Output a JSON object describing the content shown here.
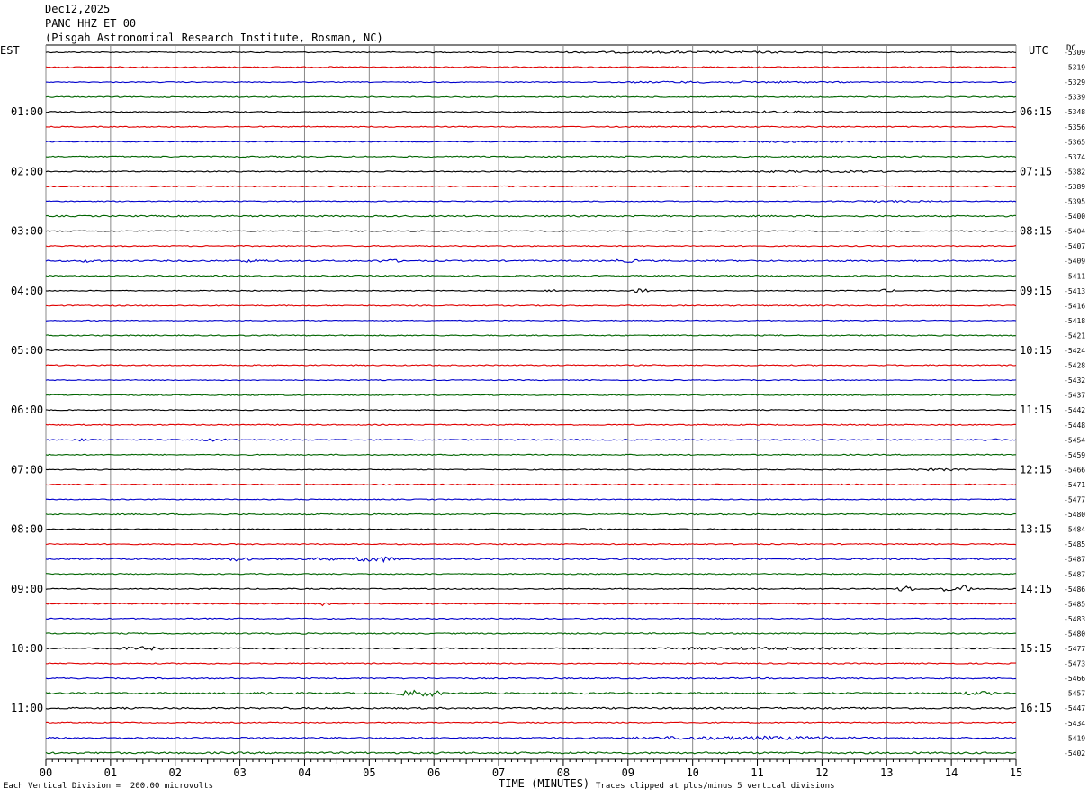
{
  "header": {
    "date": "Dec12,2025",
    "channel": "PANC HHZ ET 00",
    "station": "(Pisgah Astronomical Research Institute, Rosman, NC)"
  },
  "left_zone": "EST",
  "right_zone": "UTC",
  "dc_label": "DC",
  "footer": {
    "left_note": "Each Vertical Division =  200.00 microvolts",
    "xlabel": "TIME (MINUTES)",
    "clip_note": "Traces clipped at plus/minus 5 vertical divisions"
  },
  "colors": {
    "trace_cycle": [
      "#000000",
      "#e00000",
      "#0000cc",
      "#006400"
    ],
    "grid": "#888888"
  },
  "chart_data": {
    "type": "line",
    "xlabel": "TIME (MINUTES)",
    "xlim": [
      0,
      15
    ],
    "x_ticks": [
      "00",
      "01",
      "02",
      "03",
      "04",
      "05",
      "06",
      "07",
      "08",
      "09",
      "10",
      "11",
      "12",
      "13",
      "14",
      "15"
    ],
    "left_time_labels": [
      "01:00",
      "02:00",
      "03:00",
      "04:00",
      "05:00",
      "06:00",
      "07:00",
      "08:00",
      "09:00",
      "10:00",
      "11:00"
    ],
    "right_time_labels": [
      "06:15",
      "07:15",
      "08:15",
      "09:15",
      "10:15",
      "11:15",
      "12:15",
      "13:15",
      "14:15",
      "15:15",
      "16:15"
    ],
    "dc_offsets": [
      "-5309",
      "-5319",
      "-5329",
      "-5339",
      "-5348",
      "-5356",
      "-5365",
      "-5374",
      "-5382",
      "-5389",
      "-5395",
      "-5400",
      "-5404",
      "-5407",
      "-5409",
      "-5411",
      "-5413",
      "-5416",
      "-5418",
      "-5421",
      "-5424",
      "-5428",
      "-5432",
      "-5437",
      "-5442",
      "-5448",
      "-5454",
      "-5459",
      "-5466",
      "-5471",
      "-5477",
      "-5480",
      "-5484",
      "-5485",
      "-5487",
      "-5487",
      "-5486",
      "-5485",
      "-5483",
      "-5480",
      "-5477",
      "-5473",
      "-5466",
      "-5457",
      "-5447",
      "-5434",
      "-5419",
      "-5402"
    ],
    "series": [
      {
        "row": 0,
        "noise": 0.6,
        "events": [
          {
            "x": 10.0,
            "amp": 0.6,
            "dur": 5.0
          }
        ]
      },
      {
        "row": 1,
        "noise": 0.6,
        "events": []
      },
      {
        "row": 2,
        "noise": 0.5,
        "events": [
          {
            "x": 10.5,
            "amp": 0.6,
            "dur": 4.5
          }
        ]
      },
      {
        "row": 3,
        "noise": 0.6,
        "events": []
      },
      {
        "row": 4,
        "noise": 0.6,
        "events": [
          {
            "x": 11.0,
            "amp": 0.6,
            "dur": 4.0
          }
        ]
      },
      {
        "row": 5,
        "noise": 0.6,
        "events": []
      },
      {
        "row": 6,
        "noise": 0.5,
        "events": [
          {
            "x": 11.5,
            "amp": 0.5,
            "dur": 3.5
          }
        ]
      },
      {
        "row": 7,
        "noise": 0.7,
        "events": []
      },
      {
        "row": 8,
        "noise": 0.6,
        "events": [
          {
            "x": 12.0,
            "amp": 0.5,
            "dur": 3.0
          }
        ]
      },
      {
        "row": 9,
        "noise": 0.6,
        "events": []
      },
      {
        "row": 10,
        "noise": 0.5,
        "events": [
          {
            "x": 13.0,
            "amp": 0.5,
            "dur": 2.0
          }
        ]
      },
      {
        "row": 11,
        "noise": 0.8,
        "events": []
      },
      {
        "row": 12,
        "noise": 0.5,
        "events": []
      },
      {
        "row": 13,
        "noise": 0.6,
        "events": []
      },
      {
        "row": 14,
        "noise": 0.8,
        "events": [
          {
            "x": 0.7,
            "amp": 1.2,
            "dur": 0.4
          },
          {
            "x": 3.2,
            "amp": 1.3,
            "dur": 0.6
          },
          {
            "x": 5.3,
            "amp": 1.0,
            "dur": 0.5
          },
          {
            "x": 9.0,
            "amp": 1.0,
            "dur": 0.6
          }
        ]
      },
      {
        "row": 15,
        "noise": 0.7,
        "events": []
      },
      {
        "row": 16,
        "noise": 0.5,
        "events": [
          {
            "x": 7.8,
            "amp": 1.5,
            "dur": 0.2
          },
          {
            "x": 9.2,
            "amp": 1.8,
            "dur": 0.3
          },
          {
            "x": 13.0,
            "amp": 1.2,
            "dur": 0.3
          }
        ]
      },
      {
        "row": 17,
        "noise": 0.6,
        "events": []
      },
      {
        "row": 18,
        "noise": 0.5,
        "events": []
      },
      {
        "row": 19,
        "noise": 0.6,
        "events": []
      },
      {
        "row": 20,
        "noise": 0.5,
        "events": []
      },
      {
        "row": 21,
        "noise": 0.6,
        "events": []
      },
      {
        "row": 22,
        "noise": 0.5,
        "events": []
      },
      {
        "row": 23,
        "noise": 0.6,
        "events": []
      },
      {
        "row": 24,
        "noise": 0.5,
        "events": []
      },
      {
        "row": 25,
        "noise": 0.6,
        "events": []
      },
      {
        "row": 26,
        "noise": 0.6,
        "events": [
          {
            "x": 0.6,
            "amp": 1.0,
            "dur": 0.3
          },
          {
            "x": 2.6,
            "amp": 1.0,
            "dur": 0.5
          },
          {
            "x": 14.6,
            "amp": 1.0,
            "dur": 0.4
          }
        ]
      },
      {
        "row": 27,
        "noise": 0.6,
        "events": []
      },
      {
        "row": 28,
        "noise": 0.5,
        "events": [
          {
            "x": 13.8,
            "amp": 0.8,
            "dur": 1.2
          }
        ]
      },
      {
        "row": 29,
        "noise": 0.6,
        "events": []
      },
      {
        "row": 30,
        "noise": 0.5,
        "events": []
      },
      {
        "row": 31,
        "noise": 0.7,
        "events": []
      },
      {
        "row": 32,
        "noise": 0.5,
        "events": [
          {
            "x": 8.5,
            "amp": 0.8,
            "dur": 0.5
          }
        ]
      },
      {
        "row": 33,
        "noise": 0.6,
        "events": []
      },
      {
        "row": 34,
        "noise": 0.8,
        "events": [
          {
            "x": 3.0,
            "amp": 1.5,
            "dur": 0.4
          },
          {
            "x": 4.3,
            "amp": 1.0,
            "dur": 0.5
          },
          {
            "x": 5.1,
            "amp": 2.5,
            "dur": 0.8
          }
        ]
      },
      {
        "row": 35,
        "noise": 0.6,
        "events": []
      },
      {
        "row": 36,
        "noise": 0.6,
        "events": [
          {
            "x": 13.3,
            "amp": 3.2,
            "dur": 0.3
          },
          {
            "x": 13.9,
            "amp": 2.0,
            "dur": 0.3
          },
          {
            "x": 14.2,
            "amp": 4.0,
            "dur": 0.3
          }
        ]
      },
      {
        "row": 37,
        "noise": 0.6,
        "events": [
          {
            "x": 4.3,
            "amp": 2.0,
            "dur": 0.3
          }
        ]
      },
      {
        "row": 38,
        "noise": 0.6,
        "events": []
      },
      {
        "row": 39,
        "noise": 0.7,
        "events": []
      },
      {
        "row": 40,
        "noise": 0.7,
        "events": [
          {
            "x": 1.5,
            "amp": 1.5,
            "dur": 0.8
          },
          {
            "x": 11.0,
            "amp": 0.8,
            "dur": 3.8
          }
        ]
      },
      {
        "row": 41,
        "noise": 0.6,
        "events": []
      },
      {
        "row": 42,
        "noise": 0.7,
        "events": []
      },
      {
        "row": 43,
        "noise": 0.9,
        "events": [
          {
            "x": 3.4,
            "amp": 1.2,
            "dur": 0.4
          },
          {
            "x": 5.8,
            "amp": 3.0,
            "dur": 0.8
          },
          {
            "x": 14.4,
            "amp": 1.2,
            "dur": 0.8
          }
        ]
      },
      {
        "row": 44,
        "noise": 0.9,
        "events": []
      },
      {
        "row": 45,
        "noise": 0.6,
        "events": []
      },
      {
        "row": 46,
        "noise": 0.8,
        "events": [
          {
            "x": 10.8,
            "amp": 1.2,
            "dur": 4.0
          }
        ]
      },
      {
        "row": 47,
        "noise": 1.0,
        "events": []
      }
    ]
  }
}
